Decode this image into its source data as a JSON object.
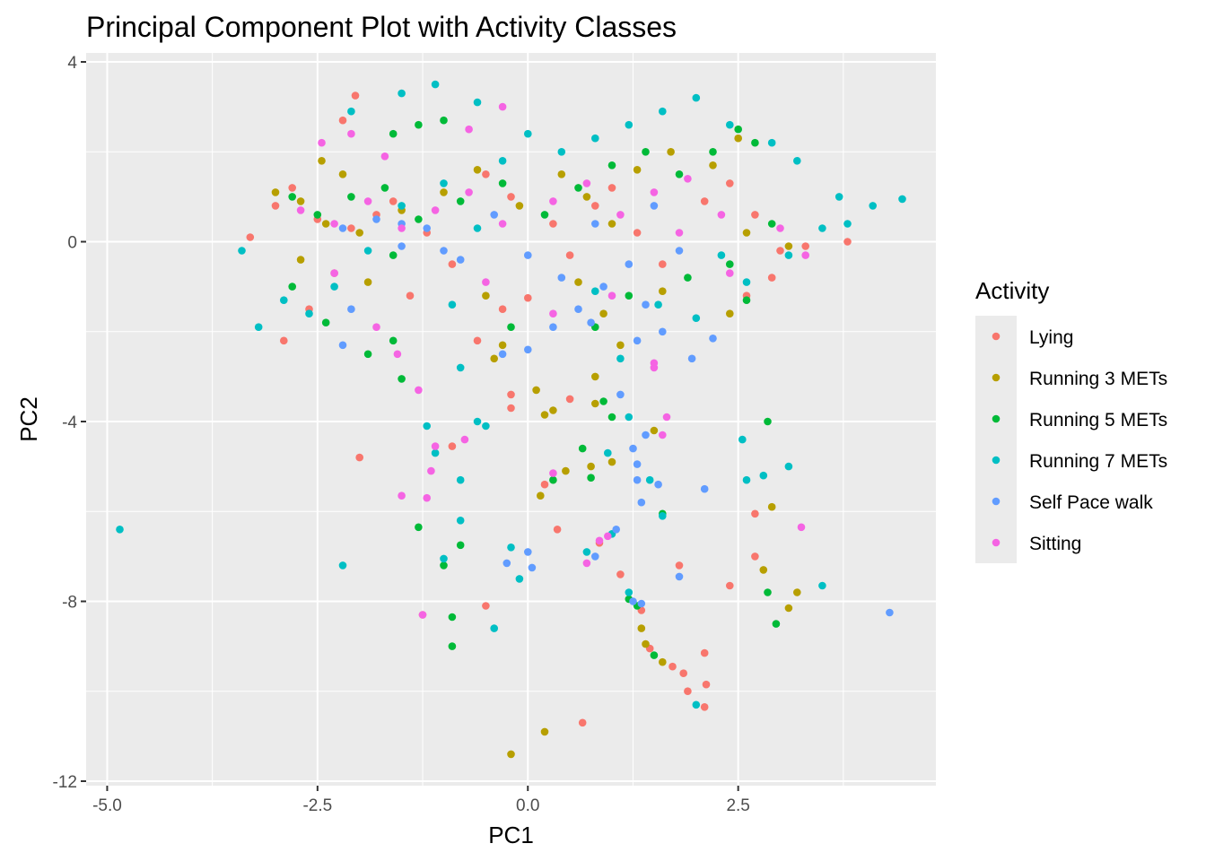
{
  "chart_data": {
    "type": "scatter",
    "title": "Principal Component Plot with Activity Classes",
    "xlabel": "PC1",
    "ylabel": "PC2",
    "xlim": [
      -5.25,
      4.85
    ],
    "ylim": [
      -12.1,
      4.2
    ],
    "x_ticks": [
      -5.0,
      -2.5,
      0.0,
      2.5
    ],
    "x_tick_labels": [
      "-5.0",
      "-2.5",
      "0.0",
      "2.5"
    ],
    "y_ticks": [
      4,
      0,
      -4,
      -8,
      -12
    ],
    "y_tick_labels": [
      "4",
      "0",
      "-4",
      "-8",
      "-12"
    ],
    "grid": true,
    "panel_background": "#ebebeb",
    "legend": {
      "title": "Activity",
      "placement": "right",
      "entries": [
        "Lying",
        "Running 3 METs",
        "Running 5 METs",
        "Running 7 METs",
        "Self Pace walk",
        "Sitting"
      ]
    },
    "series": [
      {
        "name": "Lying",
        "color": "#F8766D",
        "points": [
          [
            -2.05,
            3.25
          ],
          [
            -2.2,
            2.7
          ],
          [
            -3.3,
            0.1
          ],
          [
            -3.0,
            0.8
          ],
          [
            -2.8,
            1.2
          ],
          [
            -2.5,
            0.5
          ],
          [
            -2.1,
            0.3
          ],
          [
            -1.8,
            0.6
          ],
          [
            -1.6,
            0.9
          ],
          [
            -1.2,
            0.2
          ],
          [
            -0.9,
            -0.5
          ],
          [
            -1.4,
            -1.2
          ],
          [
            -2.9,
            -2.2
          ],
          [
            -2.6,
            -1.5
          ],
          [
            -2.3,
            -0.7
          ],
          [
            -0.5,
            1.5
          ],
          [
            -0.2,
            1.0
          ],
          [
            0.3,
            0.4
          ],
          [
            0.5,
            -0.3
          ],
          [
            0.8,
            0.8
          ],
          [
            1.0,
            1.2
          ],
          [
            1.3,
            0.2
          ],
          [
            1.6,
            -0.5
          ],
          [
            2.1,
            0.9
          ],
          [
            2.4,
            1.3
          ],
          [
            2.7,
            0.6
          ],
          [
            3.0,
            -0.2
          ],
          [
            3.3,
            -0.1
          ],
          [
            3.8,
            0.0
          ],
          [
            2.9,
            -0.8
          ],
          [
            2.6,
            -1.2
          ],
          [
            -0.6,
            -2.2
          ],
          [
            -0.3,
            -1.5
          ],
          [
            -0.2,
            -3.7
          ],
          [
            0.5,
            -3.5
          ],
          [
            0.2,
            -5.4
          ],
          [
            0.35,
            -6.4
          ],
          [
            0.85,
            -6.7
          ],
          [
            1.1,
            -7.4
          ],
          [
            1.35,
            -8.2
          ],
          [
            1.45,
            -9.05
          ],
          [
            1.72,
            -9.45
          ],
          [
            1.85,
            -9.6
          ],
          [
            1.9,
            -10.0
          ],
          [
            2.1,
            -10.35
          ],
          [
            2.12,
            -9.85
          ],
          [
            2.1,
            -9.15
          ],
          [
            2.4,
            -7.65
          ],
          [
            2.7,
            -7.0
          ],
          [
            2.7,
            -6.05
          ],
          [
            -0.5,
            -8.1
          ],
          [
            -1.25,
            -8.3
          ],
          [
            0.65,
            -10.7
          ],
          [
            -2.0,
            -4.8
          ],
          [
            -0.9,
            -4.55
          ],
          [
            -0.2,
            -3.4
          ],
          [
            1.8,
            -7.2
          ],
          [
            0.0,
            -1.25
          ]
        ]
      },
      {
        "name": "Running 3 METs",
        "color": "#B79F00",
        "points": [
          [
            -2.45,
            1.8
          ],
          [
            -2.2,
            1.5
          ],
          [
            -3.0,
            1.1
          ],
          [
            -2.7,
            0.9
          ],
          [
            -2.4,
            0.4
          ],
          [
            -2.0,
            0.2
          ],
          [
            -1.5,
            0.7
          ],
          [
            -1.0,
            1.1
          ],
          [
            -0.6,
            1.6
          ],
          [
            -0.1,
            0.8
          ],
          [
            0.4,
            1.5
          ],
          [
            0.7,
            1.0
          ],
          [
            1.0,
            0.4
          ],
          [
            1.3,
            1.6
          ],
          [
            1.7,
            2.0
          ],
          [
            2.2,
            1.7
          ],
          [
            2.5,
            2.3
          ],
          [
            0.6,
            -0.9
          ],
          [
            0.9,
            -1.6
          ],
          [
            1.1,
            -2.3
          ],
          [
            0.8,
            -3.0
          ],
          [
            -0.5,
            -1.2
          ],
          [
            -0.4,
            -2.6
          ],
          [
            -0.3,
            -2.3
          ],
          [
            0.1,
            -3.3
          ],
          [
            0.2,
            -3.85
          ],
          [
            0.3,
            -3.75
          ],
          [
            0.15,
            -5.65
          ],
          [
            0.45,
            -5.1
          ],
          [
            0.75,
            -5.0
          ],
          [
            1.5,
            -4.2
          ],
          [
            2.9,
            -5.9
          ],
          [
            2.8,
            -7.3
          ],
          [
            3.2,
            -7.8
          ],
          [
            3.1,
            -8.15
          ],
          [
            1.35,
            -8.6
          ],
          [
            1.4,
            -8.95
          ],
          [
            1.6,
            -9.35
          ],
          [
            0.2,
            -10.9
          ],
          [
            -0.2,
            -11.4
          ],
          [
            0.8,
            -3.6
          ],
          [
            1.0,
            -4.9
          ],
          [
            2.6,
            0.2
          ],
          [
            3.1,
            -0.1
          ],
          [
            2.4,
            -1.6
          ],
          [
            1.6,
            -1.1
          ],
          [
            -1.9,
            -0.9
          ],
          [
            -2.7,
            -0.4
          ]
        ]
      },
      {
        "name": "Running 5 METs",
        "color": "#00BA38",
        "points": [
          [
            -1.6,
            2.4
          ],
          [
            -1.3,
            2.6
          ],
          [
            -1.0,
            2.7
          ],
          [
            -2.8,
            1.0
          ],
          [
            -2.5,
            0.6
          ],
          [
            -2.1,
            1.0
          ],
          [
            -1.7,
            1.2
          ],
          [
            -1.3,
            0.5
          ],
          [
            -0.8,
            0.9
          ],
          [
            -0.3,
            1.3
          ],
          [
            0.2,
            0.6
          ],
          [
            0.6,
            1.2
          ],
          [
            1.0,
            1.7
          ],
          [
            1.4,
            2.0
          ],
          [
            1.8,
            1.5
          ],
          [
            2.2,
            2.0
          ],
          [
            2.5,
            2.5
          ],
          [
            2.7,
            2.2
          ],
          [
            -2.8,
            -1.0
          ],
          [
            -2.4,
            -1.8
          ],
          [
            -1.9,
            -2.5
          ],
          [
            -1.6,
            -2.2
          ],
          [
            -1.5,
            -3.05
          ],
          [
            -1.3,
            -6.35
          ],
          [
            -1.0,
            -7.2
          ],
          [
            -0.8,
            -6.75
          ],
          [
            -0.9,
            -8.35
          ],
          [
            -0.9,
            -9.0
          ],
          [
            0.3,
            -5.3
          ],
          [
            0.75,
            -5.25
          ],
          [
            1.0,
            -3.9
          ],
          [
            0.8,
            -1.9
          ],
          [
            1.2,
            -1.2
          ],
          [
            1.6,
            -6.05
          ],
          [
            1.2,
            -7.95
          ],
          [
            1.3,
            -8.1
          ],
          [
            1.5,
            -9.2
          ],
          [
            2.85,
            -4.0
          ],
          [
            2.85,
            -7.8
          ],
          [
            2.95,
            -8.5
          ],
          [
            2.6,
            -1.3
          ],
          [
            2.9,
            0.4
          ],
          [
            2.4,
            -0.5
          ],
          [
            1.9,
            -0.8
          ],
          [
            0.9,
            -3.55
          ],
          [
            0.65,
            -4.6
          ],
          [
            -0.2,
            -1.9
          ],
          [
            -1.6,
            -0.3
          ]
        ]
      },
      {
        "name": "Running 7 METs",
        "color": "#00BFC4",
        "points": [
          [
            -1.5,
            3.3
          ],
          [
            -1.1,
            3.5
          ],
          [
            -0.6,
            3.1
          ],
          [
            -2.1,
            2.9
          ],
          [
            -3.4,
            -0.2
          ],
          [
            -3.2,
            -1.9
          ],
          [
            -2.9,
            -1.3
          ],
          [
            -2.6,
            -1.6
          ],
          [
            -2.3,
            -1.0
          ],
          [
            -1.9,
            -0.2
          ],
          [
            -1.5,
            0.8
          ],
          [
            -1.0,
            1.3
          ],
          [
            -0.6,
            0.3
          ],
          [
            -0.3,
            1.8
          ],
          [
            0.0,
            2.4
          ],
          [
            0.4,
            2.0
          ],
          [
            0.8,
            2.3
          ],
          [
            1.2,
            2.6
          ],
          [
            1.6,
            2.9
          ],
          [
            2.0,
            3.2
          ],
          [
            2.4,
            2.6
          ],
          [
            2.9,
            2.2
          ],
          [
            3.2,
            1.8
          ],
          [
            3.7,
            1.0
          ],
          [
            4.1,
            0.8
          ],
          [
            4.45,
            0.95
          ],
          [
            3.5,
            0.3
          ],
          [
            3.1,
            -0.3
          ],
          [
            2.6,
            -0.9
          ],
          [
            -0.9,
            -1.4
          ],
          [
            -0.8,
            -2.8
          ],
          [
            -1.2,
            -4.1
          ],
          [
            -1.1,
            -4.7
          ],
          [
            -0.8,
            -5.3
          ],
          [
            -0.5,
            -4.1
          ],
          [
            -0.6,
            -4.0
          ],
          [
            -0.8,
            -6.2
          ],
          [
            -1.0,
            -7.05
          ],
          [
            -0.4,
            -8.6
          ],
          [
            -0.2,
            -6.8
          ],
          [
            -0.1,
            -7.5
          ],
          [
            0.7,
            -6.9
          ],
          [
            1.0,
            -6.5
          ],
          [
            1.2,
            -7.8
          ],
          [
            1.45,
            -5.3
          ],
          [
            1.6,
            -6.1
          ],
          [
            2.0,
            -10.3
          ],
          [
            2.55,
            -4.4
          ],
          [
            2.6,
            -5.3
          ],
          [
            2.8,
            -5.2
          ],
          [
            3.1,
            -5.0
          ],
          [
            3.5,
            -7.65
          ],
          [
            -2.2,
            -7.2
          ],
          [
            -4.85,
            -6.4
          ],
          [
            0.8,
            -1.1
          ],
          [
            1.1,
            -2.6
          ],
          [
            1.2,
            -3.9
          ],
          [
            0.95,
            -4.7
          ],
          [
            1.55,
            -1.4
          ],
          [
            2.3,
            -0.3
          ],
          [
            3.8,
            0.4
          ],
          [
            2.0,
            -1.7
          ]
        ]
      },
      {
        "name": "Self Pace walk",
        "color": "#619CFF",
        "points": [
          [
            -2.2,
            0.3
          ],
          [
            -1.8,
            0.5
          ],
          [
            -1.5,
            -0.1
          ],
          [
            -1.2,
            0.3
          ],
          [
            -0.8,
            -0.4
          ],
          [
            -0.4,
            0.6
          ],
          [
            0.0,
            -0.3
          ],
          [
            0.4,
            -0.8
          ],
          [
            0.8,
            0.4
          ],
          [
            1.2,
            -0.5
          ],
          [
            1.5,
            0.8
          ],
          [
            1.8,
            -0.2
          ],
          [
            -0.3,
            -2.5
          ],
          [
            0.0,
            -2.4
          ],
          [
            0.3,
            -1.9
          ],
          [
            0.6,
            -1.5
          ],
          [
            0.9,
            -1.0
          ],
          [
            1.3,
            -2.2
          ],
          [
            1.6,
            -2.0
          ],
          [
            1.95,
            -2.6
          ],
          [
            2.2,
            -2.15
          ],
          [
            -2.2,
            -2.3
          ],
          [
            -2.1,
            -1.5
          ],
          [
            1.1,
            -3.4
          ],
          [
            1.25,
            -4.6
          ],
          [
            1.3,
            -5.3
          ],
          [
            1.35,
            -5.8
          ],
          [
            1.3,
            -4.95
          ],
          [
            1.4,
            -4.3
          ],
          [
            1.55,
            -5.4
          ],
          [
            2.1,
            -5.5
          ],
          [
            0.0,
            -6.9
          ],
          [
            0.05,
            -7.25
          ],
          [
            -0.25,
            -7.15
          ],
          [
            0.8,
            -7.0
          ],
          [
            1.05,
            -6.4
          ],
          [
            1.25,
            -8.0
          ],
          [
            1.35,
            -8.05
          ],
          [
            1.8,
            -7.45
          ],
          [
            4.3,
            -8.25
          ],
          [
            0.75,
            -1.8
          ],
          [
            1.4,
            -1.4
          ],
          [
            -1.0,
            -0.2
          ],
          [
            -1.5,
            0.4
          ]
        ]
      },
      {
        "name": "Sitting",
        "color": "#F564E3",
        "points": [
          [
            -2.45,
            2.2
          ],
          [
            -2.1,
            2.4
          ],
          [
            -1.7,
            1.9
          ],
          [
            -2.7,
            0.7
          ],
          [
            -2.3,
            0.4
          ],
          [
            -1.9,
            0.9
          ],
          [
            -1.5,
            0.3
          ],
          [
            -1.1,
            0.7
          ],
          [
            -0.7,
            1.1
          ],
          [
            -0.3,
            0.4
          ],
          [
            0.3,
            0.9
          ],
          [
            0.7,
            1.3
          ],
          [
            1.1,
            0.6
          ],
          [
            1.5,
            1.1
          ],
          [
            1.9,
            1.4
          ],
          [
            2.3,
            0.6
          ],
          [
            3.0,
            0.3
          ],
          [
            3.3,
            -0.3
          ],
          [
            -0.5,
            -0.9
          ],
          [
            -0.7,
            2.5
          ],
          [
            -0.3,
            3.0
          ],
          [
            -1.8,
            -1.9
          ],
          [
            -1.55,
            -2.5
          ],
          [
            -1.3,
            -3.3
          ],
          [
            -1.1,
            -4.55
          ],
          [
            -1.15,
            -5.1
          ],
          [
            -1.5,
            -5.65
          ],
          [
            -1.2,
            -5.7
          ],
          [
            -0.75,
            -4.4
          ],
          [
            0.3,
            -5.15
          ],
          [
            0.85,
            -6.65
          ],
          [
            0.95,
            -6.55
          ],
          [
            1.5,
            -2.8
          ],
          [
            1.6,
            -4.3
          ],
          [
            1.65,
            -3.9
          ],
          [
            3.25,
            -6.35
          ],
          [
            -1.25,
            -8.3
          ],
          [
            0.7,
            -7.15
          ],
          [
            0.3,
            -1.6
          ],
          [
            1.0,
            -1.2
          ],
          [
            1.5,
            -2.7
          ],
          [
            -2.3,
            -0.7
          ],
          [
            2.4,
            -0.7
          ],
          [
            1.8,
            0.2
          ]
        ]
      }
    ]
  }
}
